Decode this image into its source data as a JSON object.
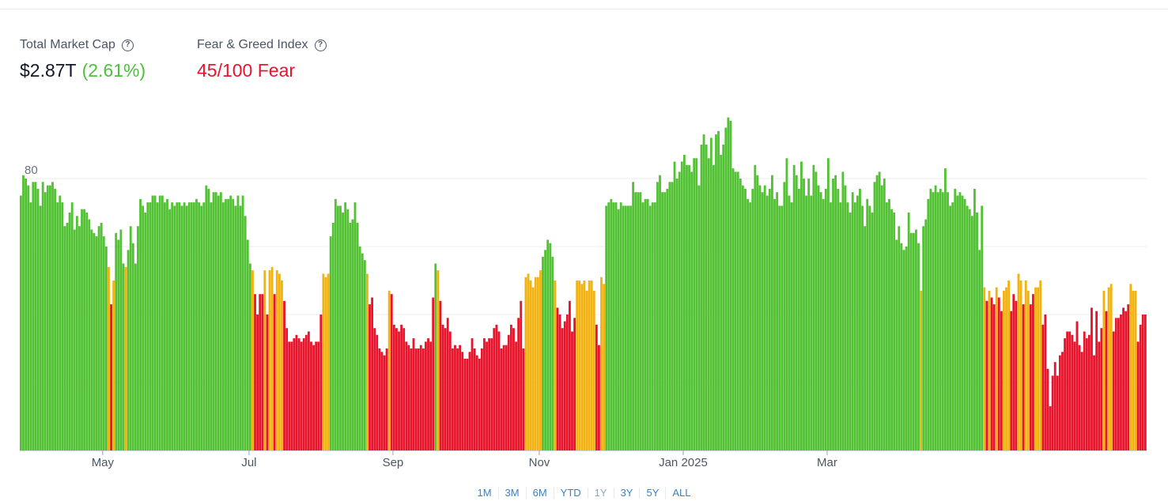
{
  "header": {
    "market_cap": {
      "label": "Total Market Cap",
      "currency_symbol": "$",
      "value": "2.87T",
      "change": "(2.61%)",
      "change_color": "#4cc13b"
    },
    "fear_greed": {
      "label": "Fear & Greed Index",
      "value": "45/100 Fear",
      "color": "#e8142c"
    }
  },
  "range_buttons": [
    "1M",
    "3M",
    "6M",
    "YTD",
    "1Y",
    "3Y",
    "5Y",
    "ALL"
  ],
  "chart_data": {
    "type": "bar",
    "y_tick_labels": [
      "80"
    ],
    "ylim": [
      0,
      100
    ],
    "y_ticks": [
      20,
      40,
      60,
      80
    ],
    "grid": true,
    "x_tick_labels": [
      "May",
      "Jul",
      "Sep",
      "Nov",
      "Jan 2025",
      "Mar"
    ],
    "x_tick_positions": [
      34,
      94,
      153,
      213,
      272,
      331
    ],
    "colors": {
      "greed": "#52c234",
      "neutral": "#f2b20f",
      "fear": "#e8142c"
    },
    "bar_color_rule": "value >= 55 greed, 47-54 neutral, <= 46 fear",
    "values": [
      75,
      81,
      80,
      78,
      73,
      79,
      79,
      77,
      72,
      79,
      76,
      78,
      78,
      79,
      77,
      73,
      75,
      73,
      66,
      67,
      70,
      73,
      65,
      69,
      66,
      71,
      71,
      70,
      68,
      65,
      64,
      63,
      66,
      67,
      63,
      60,
      54,
      43,
      50,
      64,
      62,
      65,
      55,
      54,
      59,
      66,
      61,
      55,
      66,
      74,
      72,
      70,
      73,
      73,
      75,
      75,
      73,
      75,
      75,
      73,
      74,
      71,
      73,
      72,
      73,
      73,
      72,
      73,
      72,
      73,
      73,
      73,
      74,
      73,
      72,
      73,
      78,
      77,
      73,
      76,
      76,
      75,
      76,
      73,
      74,
      74,
      75,
      74,
      72,
      75,
      72,
      75,
      69,
      62,
      55,
      53,
      46,
      40,
      46,
      46,
      53,
      40,
      53,
      54,
      46,
      53,
      52,
      50,
      44,
      36,
      32,
      32,
      33,
      34,
      33,
      32,
      33,
      34,
      35,
      32,
      31,
      32,
      32,
      40,
      52,
      51,
      52,
      63,
      67,
      74,
      72,
      72,
      70,
      73,
      71,
      67,
      68,
      73,
      67,
      60,
      58,
      56,
      52,
      43,
      45,
      36,
      34,
      30,
      29,
      28,
      30,
      47,
      46,
      37,
      36,
      35,
      37,
      36,
      32,
      31,
      30,
      33,
      30,
      30,
      31,
      30,
      32,
      33,
      32,
      45,
      55,
      53,
      44,
      37,
      36,
      39,
      35,
      30,
      31,
      30,
      31,
      29,
      27,
      27,
      29,
      33,
      30,
      28,
      27,
      30,
      33,
      32,
      33,
      33,
      36,
      37,
      35,
      30,
      31,
      31,
      34,
      37,
      36,
      32,
      39,
      44,
      30,
      51,
      52,
      50,
      48,
      51,
      51,
      53,
      57,
      59,
      62,
      61,
      57,
      50,
      42,
      40,
      36,
      38,
      40,
      44,
      35,
      39,
      50,
      50,
      49,
      50,
      47,
      50,
      50,
      47,
      37,
      31,
      51,
      49,
      72,
      73,
      74,
      73,
      73,
      71,
      73,
      72,
      72,
      72,
      72,
      79,
      76,
      76,
      76,
      73,
      74,
      74,
      72,
      73,
      73,
      79,
      81,
      76,
      76,
      77,
      79,
      79,
      85,
      80,
      82,
      85,
      87,
      84,
      84,
      82,
      86,
      86,
      78,
      90,
      93,
      90,
      86,
      92,
      84,
      93,
      94,
      87,
      90,
      95,
      98,
      97,
      83,
      82,
      82,
      80,
      78,
      77,
      74,
      73,
      77,
      84,
      81,
      78,
      76,
      78,
      75,
      77,
      81,
      74,
      76,
      72,
      72,
      79,
      86,
      75,
      73,
      84,
      81,
      77,
      85,
      80,
      75,
      80,
      75,
      84,
      82,
      78,
      76,
      74,
      77,
      86,
      73,
      80,
      81,
      77,
      73,
      82,
      78,
      73,
      70,
      76,
      73,
      75,
      77,
      72,
      66,
      74,
      72,
      70,
      79,
      81,
      82,
      78,
      80,
      73,
      74,
      71,
      70,
      62,
      66,
      61,
      59,
      60,
      70,
      64,
      64,
      65,
      61,
      47,
      66,
      68,
      74,
      77,
      76,
      78,
      76,
      77,
      76,
      83,
      76,
      72,
      73,
      77,
      75,
      76,
      75,
      74,
      72,
      71,
      69,
      77,
      70,
      59,
      72,
      48,
      44,
      47,
      45,
      43,
      48,
      45,
      41,
      47,
      48,
      50,
      41,
      46,
      44,
      52,
      50,
      43,
      50,
      47,
      43,
      46,
      48,
      48,
      50,
      37,
      40,
      24,
      13,
      22,
      26,
      22,
      28,
      29,
      33,
      35,
      35,
      34,
      32,
      38,
      31,
      29,
      35,
      33,
      34,
      42,
      28,
      41,
      32,
      36,
      47,
      41,
      48,
      49,
      35,
      39,
      39,
      40,
      42,
      41,
      43,
      49,
      47,
      47,
      32,
      37,
      40,
      40
    ]
  }
}
